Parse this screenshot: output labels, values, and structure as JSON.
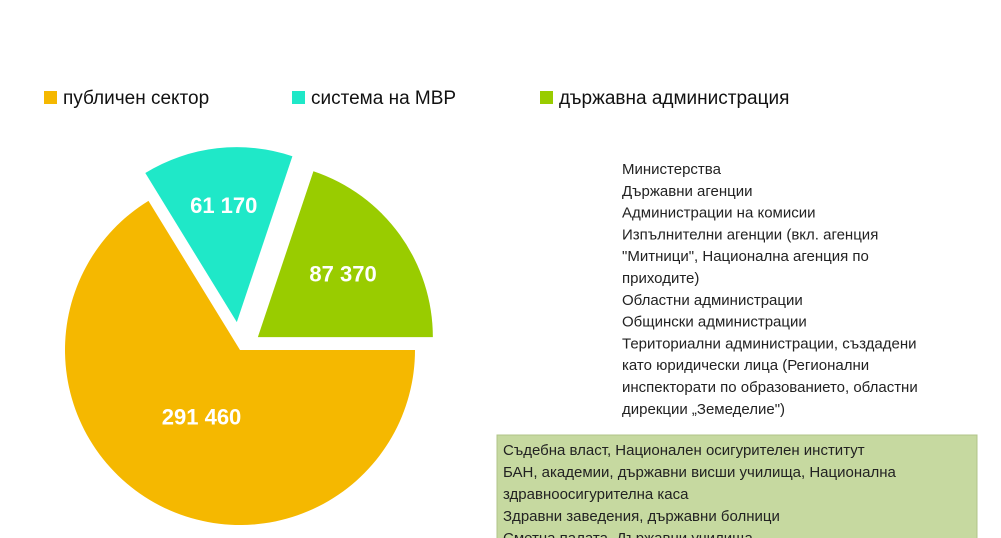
{
  "chart_data": {
    "type": "pie",
    "categories": [
      "публичен сектор",
      "система на МВР",
      "държавна администрация"
    ],
    "values": [
      291460,
      61170,
      87370
    ],
    "value_labels": [
      "291 460",
      "61 170",
      "87 370"
    ],
    "colors": [
      "#f5b800",
      "#1fe8c8",
      "#99cc00"
    ],
    "legend": "top"
  },
  "administration_list": [
    "Министерства",
    "Държавни агенции",
    "Администрации на комисии",
    "Изпълнителни агенции (вкл. агенция",
    "\"Митници\", Национална агенция по",
    "приходите)",
    "Областни администрации",
    "Общински администрации",
    "Териториални администрации, създадени",
    "като юридически лица (Регионални",
    "инспекторати по образованието, областни",
    "дирекции „Земеделие\")"
  ],
  "public_sector_box": [
    "Съдебна власт, Национален осигурителен институт",
    "БАН, академии, държавни висши училища, Национална",
    "здравноосигурителна каса",
    "Здравни заведения, държавни болници",
    "Сметна палата, Държавни училища"
  ]
}
